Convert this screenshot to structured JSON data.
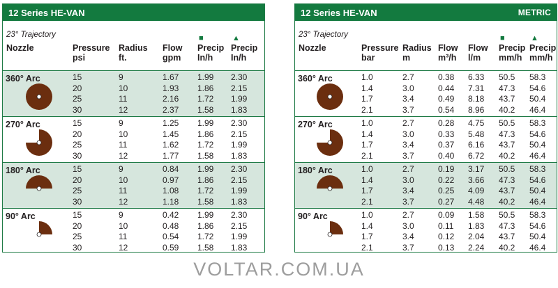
{
  "left": {
    "title": "12 Series HE-VAN",
    "trajectory": "23° Trajectory",
    "headers": [
      "Nozzle",
      "Pressure\npsi",
      "Radius\nft.",
      "Flow\ngpm",
      "Precip\nIn/h",
      "Precip\nIn/h"
    ],
    "groups": [
      {
        "arc": "360° Arc",
        "shade": true,
        "icon": "full-circle-icon",
        "rows": [
          [
            "15",
            "9",
            "1.67",
            "1.99",
            "2.30"
          ],
          [
            "20",
            "10",
            "1.93",
            "1.86",
            "2.15"
          ],
          [
            "25",
            "11",
            "2.16",
            "1.72",
            "1.99"
          ],
          [
            "30",
            "12",
            "2.37",
            "1.58",
            "1.83"
          ]
        ]
      },
      {
        "arc": "270° Arc",
        "shade": false,
        "icon": "three-quarter-circle-icon",
        "rows": [
          [
            "15",
            "9",
            "1.25",
            "1.99",
            "2.30"
          ],
          [
            "20",
            "10",
            "1.45",
            "1.86",
            "2.15"
          ],
          [
            "25",
            "11",
            "1.62",
            "1.72",
            "1.99"
          ],
          [
            "30",
            "12",
            "1.77",
            "1.58",
            "1.83"
          ]
        ]
      },
      {
        "arc": "180° Arc",
        "shade": true,
        "icon": "half-circle-icon",
        "rows": [
          [
            "15",
            "9",
            "0.84",
            "1.99",
            "2.30"
          ],
          [
            "20",
            "10",
            "0.97",
            "1.86",
            "2.15"
          ],
          [
            "25",
            "11",
            "1.08",
            "1.72",
            "1.99"
          ],
          [
            "30",
            "12",
            "1.18",
            "1.58",
            "1.83"
          ]
        ]
      },
      {
        "arc": "90° Arc",
        "shade": false,
        "icon": "quarter-circle-icon",
        "rows": [
          [
            "15",
            "9",
            "0.42",
            "1.99",
            "2.30"
          ],
          [
            "20",
            "10",
            "0.48",
            "1.86",
            "2.15"
          ],
          [
            "25",
            "11",
            "0.54",
            "1.72",
            "1.99"
          ],
          [
            "30",
            "12",
            "0.59",
            "1.58",
            "1.83"
          ]
        ]
      }
    ]
  },
  "right": {
    "title": "12 Series HE-VAN",
    "badge": "METRIC",
    "trajectory": "23° Trajectory",
    "headers": [
      "Nozzle",
      "Pressure\nbar",
      "Radius\nm",
      "Flow\nm³/h",
      "Flow\nl/m",
      "Precip\nmm/h",
      "Precip\nmm/h"
    ],
    "groups": [
      {
        "arc": "360° Arc",
        "shade": false,
        "icon": "full-circle-icon",
        "rows": [
          [
            "1.0",
            "2.7",
            "0.38",
            "6.33",
            "50.5",
            "58.3"
          ],
          [
            "1.4",
            "3.0",
            "0.44",
            "7.31",
            "47.3",
            "54.6"
          ],
          [
            "1.7",
            "3.4",
            "0.49",
            "8.18",
            "43.7",
            "50.4"
          ],
          [
            "2.1",
            "3.7",
            "0.54",
            "8.96",
            "40.2",
            "46.4"
          ]
        ]
      },
      {
        "arc": "270° Arc",
        "shade": false,
        "icon": "three-quarter-circle-icon",
        "rows": [
          [
            "1.0",
            "2.7",
            "0.28",
            "4.75",
            "50.5",
            "58.3"
          ],
          [
            "1.4",
            "3.0",
            "0.33",
            "5.48",
            "47.3",
            "54.6"
          ],
          [
            "1.7",
            "3.4",
            "0.37",
            "6.16",
            "43.7",
            "50.4"
          ],
          [
            "2.1",
            "3.7",
            "0.40",
            "6.72",
            "40.2",
            "46.4"
          ]
        ]
      },
      {
        "arc": "180° Arc",
        "shade": true,
        "icon": "half-circle-icon",
        "rows": [
          [
            "1.0",
            "2.7",
            "0.19",
            "3.17",
            "50.5",
            "58.3"
          ],
          [
            "1.4",
            "3.0",
            "0.22",
            "3.66",
            "47.3",
            "54.6"
          ],
          [
            "1.7",
            "3.4",
            "0.25",
            "4.09",
            "43.7",
            "50.4"
          ],
          [
            "2.1",
            "3.7",
            "0.27",
            "4.48",
            "40.2",
            "46.4"
          ]
        ]
      },
      {
        "arc": "90° Arc",
        "shade": false,
        "icon": "quarter-circle-icon",
        "rows": [
          [
            "1.0",
            "2.7",
            "0.09",
            "1.58",
            "50.5",
            "58.3"
          ],
          [
            "1.4",
            "3.0",
            "0.11",
            "1.83",
            "47.3",
            "54.6"
          ],
          [
            "1.7",
            "3.4",
            "0.12",
            "2.04",
            "43.7",
            "50.4"
          ],
          [
            "2.1",
            "3.7",
            "0.13",
            "2.24",
            "40.2",
            "46.4"
          ]
        ]
      }
    ]
  },
  "colors": {
    "green": "#137a3f",
    "shade": "#d6e6dd",
    "nozzle": "#6b2e0f"
  },
  "watermark": "VOLTAR.COM.UA"
}
